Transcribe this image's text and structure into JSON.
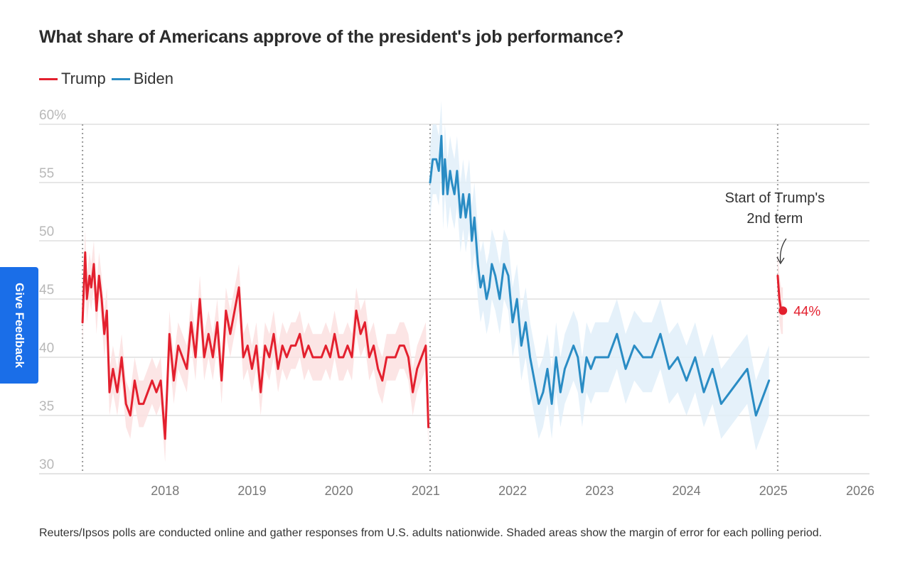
{
  "title": "What share of Americans approve of the president's job performance?",
  "legend": [
    {
      "label": "Trump",
      "color": "#e3202e"
    },
    {
      "label": "Biden",
      "color": "#2a8cc4"
    }
  ],
  "feedback_label": "Give Feedback",
  "note": "Reuters/Ipsos polls are conducted online and gather responses from U.S. adults nationwide. Shaded areas show the margin of error for each polling period.",
  "chart_data": {
    "type": "line",
    "title": "What share of Americans approve of the president's job performance?",
    "xlabel": "",
    "ylabel": "",
    "ylim": [
      30,
      60
    ],
    "xlim": [
      2017.0,
      2026.0
    ],
    "y_ticks": [
      {
        "value": 60,
        "label": "60%"
      },
      {
        "value": 55,
        "label": "55"
      },
      {
        "value": 50,
        "label": "50"
      },
      {
        "value": 45,
        "label": "45"
      },
      {
        "value": 40,
        "label": "40"
      },
      {
        "value": 35,
        "label": "35"
      },
      {
        "value": 30,
        "label": "30"
      }
    ],
    "x_ticks": [
      "2018",
      "2019",
      "2020",
      "2021",
      "2022",
      "2023",
      "2024",
      "2025",
      "2026"
    ],
    "grid": true,
    "legend_position": "top-left",
    "term_start_markers": [
      2017.05,
      2021.05,
      2025.05
    ],
    "colors": {
      "trump": "#e3202e",
      "biden": "#2a8cc4",
      "trump_band": "#fbe0e0",
      "biden_band": "#e0eef9"
    },
    "series": [
      {
        "name": "Trump",
        "color": "#e3202e",
        "margin_of_error": 2,
        "x": [
          2017.05,
          2017.08,
          2017.1,
          2017.13,
          2017.15,
          2017.18,
          2017.21,
          2017.24,
          2017.27,
          2017.3,
          2017.33,
          2017.36,
          2017.4,
          2017.45,
          2017.5,
          2017.55,
          2017.6,
          2017.65,
          2017.7,
          2017.75,
          2017.8,
          2017.85,
          2017.9,
          2017.95,
          2018.0,
          2018.05,
          2018.1,
          2018.15,
          2018.2,
          2018.25,
          2018.3,
          2018.35,
          2018.4,
          2018.45,
          2018.5,
          2018.55,
          2018.6,
          2018.65,
          2018.7,
          2018.75,
          2018.8,
          2018.85,
          2018.9,
          2018.95,
          2019.0,
          2019.05,
          2019.1,
          2019.15,
          2019.2,
          2019.25,
          2019.3,
          2019.35,
          2019.4,
          2019.45,
          2019.5,
          2019.55,
          2019.6,
          2019.65,
          2019.7,
          2019.75,
          2019.8,
          2019.85,
          2019.9,
          2019.95,
          2020.0,
          2020.05,
          2020.1,
          2020.15,
          2020.2,
          2020.25,
          2020.3,
          2020.35,
          2020.4,
          2020.45,
          2020.5,
          2020.55,
          2020.6,
          2020.65,
          2020.7,
          2020.75,
          2020.8,
          2020.85,
          2020.9,
          2020.95,
          2021.0,
          2021.03
        ],
        "y": [
          43,
          49,
          45,
          47,
          46,
          48,
          44,
          47,
          45,
          42,
          44,
          37,
          39,
          37,
          40,
          36,
          35,
          38,
          36,
          36,
          37,
          38,
          37,
          38,
          33,
          42,
          38,
          41,
          40,
          39,
          43,
          40,
          45,
          40,
          42,
          40,
          43,
          38,
          44,
          42,
          44,
          46,
          40,
          41,
          39,
          41,
          37,
          41,
          40,
          42,
          39,
          41,
          40,
          41,
          41,
          42,
          40,
          41,
          40,
          40,
          40,
          41,
          40,
          42,
          40,
          40,
          41,
          40,
          44,
          42,
          43,
          40,
          41,
          39,
          38,
          40,
          40,
          40,
          41,
          41,
          40,
          37,
          39,
          40,
          41,
          34
        ]
      },
      {
        "name": "Biden",
        "color": "#2a8cc4",
        "margin_of_error": 3,
        "x": [
          2021.05,
          2021.08,
          2021.12,
          2021.15,
          2021.18,
          2021.2,
          2021.22,
          2021.25,
          2021.28,
          2021.3,
          2021.33,
          2021.36,
          2021.4,
          2021.43,
          2021.46,
          2021.5,
          2021.53,
          2021.56,
          2021.6,
          2021.63,
          2021.66,
          2021.7,
          2021.73,
          2021.76,
          2021.8,
          2021.85,
          2021.9,
          2021.95,
          2022.0,
          2022.05,
          2022.1,
          2022.15,
          2022.2,
          2022.25,
          2022.3,
          2022.35,
          2022.4,
          2022.45,
          2022.5,
          2022.55,
          2022.6,
          2022.65,
          2022.7,
          2022.75,
          2022.8,
          2022.85,
          2022.9,
          2022.95,
          2023.0,
          2023.1,
          2023.2,
          2023.3,
          2023.4,
          2023.5,
          2023.6,
          2023.7,
          2023.8,
          2023.9,
          2024.0,
          2024.1,
          2024.2,
          2024.3,
          2024.4,
          2024.5,
          2024.6,
          2024.7,
          2024.8,
          2024.9,
          2024.95
        ],
        "y": [
          55,
          57,
          57,
          56,
          59,
          54,
          57,
          54,
          56,
          55,
          54,
          56,
          52,
          54,
          52,
          54,
          50,
          52,
          48,
          46,
          47,
          45,
          46,
          48,
          47,
          45,
          48,
          47,
          43,
          45,
          41,
          43,
          40,
          38,
          36,
          37,
          39,
          36,
          40,
          37,
          39,
          40,
          41,
          40,
          37,
          40,
          39,
          40,
          40,
          40,
          42,
          39,
          41,
          40,
          40,
          42,
          39,
          40,
          38,
          40,
          37,
          39,
          36,
          37,
          38,
          39,
          35,
          37,
          38
        ]
      },
      {
        "name": "Trump",
        "color": "#e3202e",
        "margin_of_error": 2,
        "x": [
          2025.05,
          2025.07,
          2025.09,
          2025.11
        ],
        "y": [
          47,
          45,
          44,
          44
        ]
      }
    ],
    "annotations": [
      {
        "text_lines": [
          "Start of Trump's",
          "2nd term"
        ],
        "x": 2025.05,
        "y": 47.5
      },
      {
        "text": "44%",
        "x": 2025.11,
        "y": 44
      }
    ]
  }
}
